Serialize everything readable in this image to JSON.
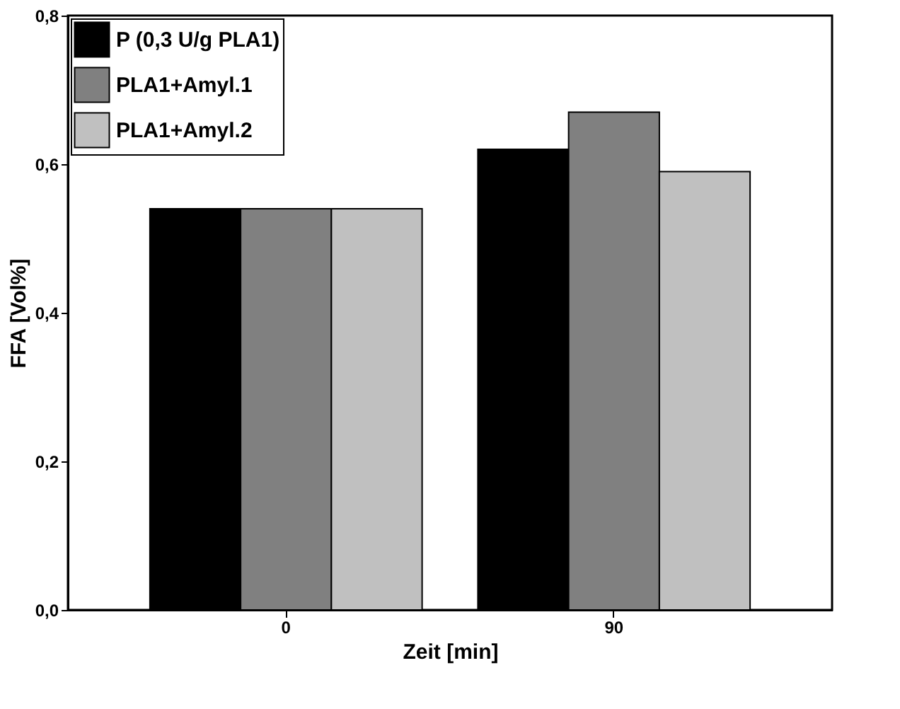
{
  "chart_data": {
    "type": "bar",
    "xlabel": "Zeit [min]",
    "ylabel": "FFA [Vol%]",
    "categories": [
      "0",
      "90"
    ],
    "series": [
      {
        "name": "P (0,3 U/g PLA1)",
        "color": "#000000",
        "values": [
          0.54,
          0.62
        ]
      },
      {
        "name": "PLA1+Amyl.1",
        "color": "#808080",
        "values": [
          0.54,
          0.67
        ]
      },
      {
        "name": "PLA1+Amyl.2",
        "color": "#c0c0c0",
        "values": [
          0.54,
          0.59
        ]
      }
    ],
    "ylim": [
      0,
      0.8
    ],
    "yticks": [
      {
        "value": 0,
        "label": "0,0"
      },
      {
        "value": 0.2,
        "label": "0,2"
      },
      {
        "value": 0.4,
        "label": "0,4"
      },
      {
        "value": 0.6,
        "label": "0,6"
      },
      {
        "value": 0.8,
        "label": "0,8"
      }
    ],
    "grid": false,
    "legend": "top left"
  }
}
